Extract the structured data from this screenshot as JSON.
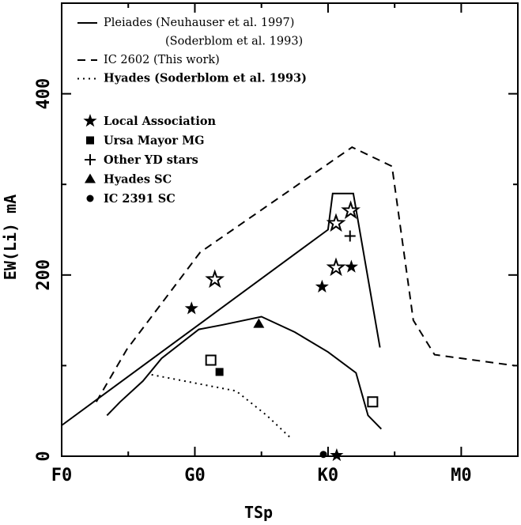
{
  "chart_data": {
    "type": "line",
    "xlabel": "TSp",
    "ylabel": "EW(Li) mA",
    "xlim": [
      0,
      6.85
    ],
    "ylim": [
      0,
      500
    ],
    "x_ticks": [
      {
        "value": 0,
        "label": "F0"
      },
      {
        "value": 2,
        "label": "G0"
      },
      {
        "value": 4,
        "label": "K0"
      },
      {
        "value": 6,
        "label": "M0"
      }
    ],
    "y_ticks": [
      {
        "value": 0,
        "label": "0"
      },
      {
        "value": 200,
        "label": "200"
      },
      {
        "value": 400,
        "label": "400"
      }
    ],
    "curve_legend": [
      {
        "style": "solid",
        "lines": [
          "Pleiades (Neuhauser et al. 1997)",
          "(Soderblom et al. 1993)"
        ]
      },
      {
        "style": "dashed",
        "lines": [
          "IC 2602  (This work)"
        ]
      },
      {
        "style": "dotted",
        "lines": [
          "Hyades  (Soderblom et al. 1993)"
        ]
      }
    ],
    "marker_legend": [
      {
        "marker": "star",
        "label": "Local Association"
      },
      {
        "marker": "square",
        "label": "Ursa Mayor MG"
      },
      {
        "marker": "plus",
        "label": "Other YD stars"
      },
      {
        "marker": "triangle",
        "label": "Hyades SC"
      },
      {
        "marker": "circle",
        "label": "IC 2391 SC"
      }
    ],
    "curves": [
      {
        "name": "Pleiades upper",
        "style": "solid",
        "points": [
          [
            0,
            34
          ],
          [
            4,
            250
          ],
          [
            4.07,
            290
          ],
          [
            4.38,
            290
          ],
          [
            4.78,
            120
          ]
        ]
      },
      {
        "name": "Pleiades lower",
        "style": "solid",
        "points": [
          [
            0.68,
            45
          ],
          [
            0.88,
            60
          ],
          [
            1.22,
            83
          ],
          [
            1.5,
            108
          ],
          [
            2.06,
            140
          ],
          [
            2.42,
            145
          ],
          [
            3.0,
            154
          ],
          [
            3.5,
            137
          ],
          [
            4.0,
            115
          ],
          [
            4.42,
            92
          ],
          [
            4.6,
            45
          ],
          [
            4.8,
            30
          ]
        ]
      },
      {
        "name": "IC 2602",
        "style": "dashed",
        "points": [
          [
            0.52,
            60
          ],
          [
            0.98,
            118
          ],
          [
            2.08,
            225
          ],
          [
            4.36,
            341
          ],
          [
            4.96,
            320
          ],
          [
            5.28,
            150
          ],
          [
            5.6,
            112
          ],
          [
            6.8,
            100
          ]
        ]
      },
      {
        "name": "Hyades",
        "style": "dotted",
        "points": [
          [
            1.35,
            90
          ],
          [
            2.62,
            72
          ],
          [
            3.08,
            45
          ],
          [
            3.44,
            20
          ]
        ]
      }
    ],
    "markers": [
      {
        "marker": "star_filled",
        "x": 1.95,
        "y": 163
      },
      {
        "marker": "star_open",
        "x": 2.3,
        "y": 195
      },
      {
        "marker": "star_filled",
        "x": 3.91,
        "y": 187
      },
      {
        "marker": "star_open",
        "x": 4.12,
        "y": 208
      },
      {
        "marker": "star_filled",
        "x": 4.35,
        "y": 209
      },
      {
        "marker": "star_open",
        "x": 4.12,
        "y": 257
      },
      {
        "marker": "star_open",
        "x": 4.34,
        "y": 271
      },
      {
        "marker": "star_filled",
        "x": 4.13,
        "y": 1
      },
      {
        "marker": "plus",
        "x": 4.33,
        "y": 243
      },
      {
        "marker": "triangle",
        "x": 2.96,
        "y": 146
      },
      {
        "marker": "square_open",
        "x": 2.24,
        "y": 106
      },
      {
        "marker": "square_filled",
        "x": 2.37,
        "y": 93
      },
      {
        "marker": "square_open",
        "x": 4.67,
        "y": 60
      },
      {
        "marker": "circle",
        "x": 3.93,
        "y": 2
      }
    ]
  }
}
